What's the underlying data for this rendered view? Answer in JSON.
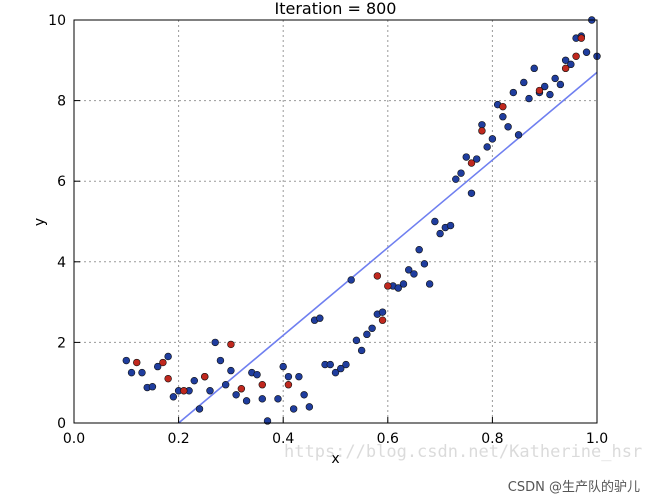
{
  "chart_data": {
    "type": "scatter",
    "title": "Iteration = 800",
    "xlabel": "x",
    "ylabel": "y",
    "xlim": [
      0.0,
      1.0
    ],
    "ylim": [
      0,
      10
    ],
    "xticks": [
      "0.0",
      "0.2",
      "0.4",
      "0.6",
      "0.8",
      "1.0"
    ],
    "yticks": [
      "0",
      "2",
      "4",
      "6",
      "8",
      "10"
    ],
    "grid": true,
    "colors": {
      "blue_points": "#1f3d9e",
      "red_points": "#c0281e",
      "fit_line": "#6f7ff0"
    },
    "series": [
      {
        "marker": "blue-dot",
        "points": [
          [
            0.1,
            1.55
          ],
          [
            0.11,
            1.25
          ],
          [
            0.13,
            1.25
          ],
          [
            0.14,
            0.88
          ],
          [
            0.15,
            0.9
          ],
          [
            0.16,
            1.4
          ],
          [
            0.18,
            1.65
          ],
          [
            0.19,
            0.65
          ],
          [
            0.2,
            0.8
          ],
          [
            0.22,
            0.8
          ],
          [
            0.23,
            1.05
          ],
          [
            0.24,
            0.35
          ],
          [
            0.25,
            1.15
          ],
          [
            0.26,
            0.8
          ],
          [
            0.27,
            2.0
          ],
          [
            0.28,
            1.55
          ],
          [
            0.29,
            0.95
          ],
          [
            0.3,
            1.3
          ],
          [
            0.31,
            0.7
          ],
          [
            0.33,
            0.55
          ],
          [
            0.34,
            1.25
          ],
          [
            0.35,
            1.2
          ],
          [
            0.36,
            0.6
          ],
          [
            0.37,
            0.05
          ],
          [
            0.39,
            0.6
          ],
          [
            0.4,
            1.4
          ],
          [
            0.41,
            1.15
          ],
          [
            0.42,
            0.35
          ],
          [
            0.43,
            1.15
          ],
          [
            0.44,
            0.7
          ],
          [
            0.45,
            0.4
          ],
          [
            0.46,
            2.55
          ],
          [
            0.47,
            2.6
          ],
          [
            0.48,
            1.45
          ],
          [
            0.49,
            1.45
          ],
          [
            0.5,
            1.25
          ],
          [
            0.51,
            1.35
          ],
          [
            0.52,
            1.45
          ],
          [
            0.53,
            3.55
          ],
          [
            0.54,
            2.05
          ],
          [
            0.55,
            1.8
          ],
          [
            0.56,
            2.2
          ],
          [
            0.57,
            2.35
          ],
          [
            0.58,
            2.7
          ],
          [
            0.59,
            2.75
          ],
          [
            0.61,
            3.4
          ],
          [
            0.62,
            3.35
          ],
          [
            0.63,
            3.45
          ],
          [
            0.64,
            3.8
          ],
          [
            0.65,
            3.7
          ],
          [
            0.66,
            4.3
          ],
          [
            0.67,
            3.95
          ],
          [
            0.68,
            3.45
          ],
          [
            0.69,
            5.0
          ],
          [
            0.7,
            4.7
          ],
          [
            0.71,
            4.85
          ],
          [
            0.72,
            4.9
          ],
          [
            0.73,
            6.05
          ],
          [
            0.74,
            6.2
          ],
          [
            0.75,
            6.6
          ],
          [
            0.76,
            5.7
          ],
          [
            0.77,
            6.55
          ],
          [
            0.78,
            7.4
          ],
          [
            0.79,
            6.85
          ],
          [
            0.8,
            7.05
          ],
          [
            0.81,
            7.9
          ],
          [
            0.82,
            7.6
          ],
          [
            0.83,
            7.35
          ],
          [
            0.84,
            8.2
          ],
          [
            0.85,
            7.15
          ],
          [
            0.86,
            8.45
          ],
          [
            0.87,
            8.05
          ],
          [
            0.88,
            8.8
          ],
          [
            0.89,
            8.2
          ],
          [
            0.9,
            8.35
          ],
          [
            0.91,
            8.15
          ],
          [
            0.92,
            8.55
          ],
          [
            0.93,
            8.4
          ],
          [
            0.94,
            9.0
          ],
          [
            0.95,
            8.9
          ],
          [
            0.96,
            9.55
          ],
          [
            0.97,
            9.6
          ],
          [
            0.98,
            9.2
          ],
          [
            0.99,
            10.0
          ],
          [
            1.0,
            9.1
          ]
        ]
      },
      {
        "marker": "red-dot",
        "points": [
          [
            0.12,
            1.5
          ],
          [
            0.17,
            1.5
          ],
          [
            0.18,
            1.1
          ],
          [
            0.21,
            0.8
          ],
          [
            0.25,
            1.15
          ],
          [
            0.3,
            1.95
          ],
          [
            0.32,
            0.85
          ],
          [
            0.36,
            0.95
          ],
          [
            0.41,
            0.95
          ],
          [
            0.58,
            3.65
          ],
          [
            0.59,
            2.55
          ],
          [
            0.6,
            3.4
          ],
          [
            0.76,
            6.45
          ],
          [
            0.78,
            7.25
          ],
          [
            0.82,
            7.85
          ],
          [
            0.89,
            8.25
          ],
          [
            0.94,
            8.8
          ],
          [
            0.96,
            9.1
          ],
          [
            0.97,
            9.55
          ]
        ]
      },
      {
        "marker": "line",
        "points": [
          [
            0.2,
            0.0
          ],
          [
            1.0,
            8.7
          ]
        ]
      }
    ]
  },
  "watermark": "https://blog.csdn.net/Katherine_hsr",
  "footer": "CSDN @生产队的驴儿"
}
